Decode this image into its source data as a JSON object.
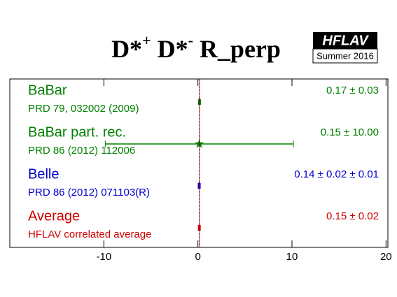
{
  "chart_data": {
    "type": "forest",
    "title": [
      "D*",
      "+",
      " D*",
      "-",
      " R_perp"
    ],
    "logo": {
      "name": "HFLAV",
      "edition": "Summer 2016"
    },
    "xlim": [
      -20,
      20.2
    ],
    "xticks": [
      -10,
      0,
      10,
      20
    ],
    "entries": [
      {
        "name": "BaBar",
        "reference": "PRD 79, 032002 (2009)",
        "color": "#008000",
        "marker": "circle",
        "value": 0.17,
        "errors": [
          0.03
        ],
        "value_label": "0.17 ± 0.03"
      },
      {
        "name": "BaBar part. rec.",
        "reference": "PRD 86 (2012) 112006",
        "color": "#008000",
        "marker": "star",
        "value": 0.15,
        "errors": [
          10.0
        ],
        "value_label": "0.15 ± 10.00"
      },
      {
        "name": "Belle",
        "reference": "PRD 86 (2012) 071103(R)",
        "color": "#0000cc",
        "marker": "circle",
        "value": 0.14,
        "errors": [
          0.02,
          0.01
        ],
        "value_label": "0.14 ± 0.02 ± 0.01"
      },
      {
        "name": "Average",
        "reference": "HFLAV correlated average",
        "color": "#cc0000",
        "marker": "circle",
        "value": 0.15,
        "errors": [
          0.02
        ],
        "value_label": "0.15 ± 0.02",
        "is_average": true
      }
    ]
  }
}
